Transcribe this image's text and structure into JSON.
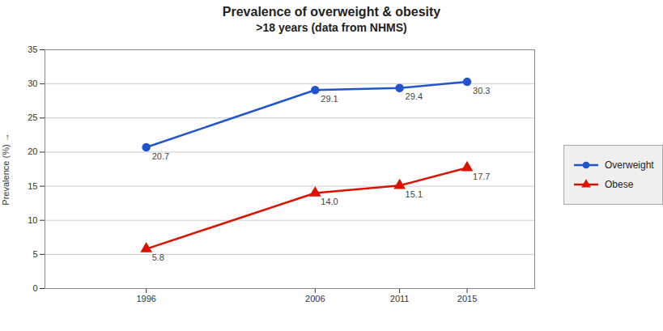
{
  "chart_data": {
    "type": "line",
    "title": "Prevalence of overweight & obesity",
    "subtitle": ">18 years (data from NHMS)",
    "x": [
      1996,
      2006,
      2011,
      2015
    ],
    "xlim": [
      1990,
      2019
    ],
    "xticks": [
      1996,
      2006,
      2011,
      2015
    ],
    "ylabel": "Prevalence (%)",
    "ylim": [
      0,
      35
    ],
    "yticks": [
      0,
      5,
      10,
      15,
      20,
      25,
      30,
      35
    ],
    "grid": true,
    "legend": "right",
    "data_labels": true,
    "series": [
      {
        "name": "Overweight",
        "color": "#2255cc",
        "marker": "circle",
        "values": [
          20.7,
          29.1,
          29.4,
          30.3
        ],
        "value_labels": [
          "20.7",
          "29.1",
          "29.4",
          "30.3"
        ]
      },
      {
        "name": "Obese",
        "color": "#dd1100",
        "marker": "triangle",
        "values": [
          5.8,
          14.0,
          15.1,
          17.7
        ],
        "value_labels": [
          "5.8",
          "14.0",
          "15.1",
          "17.7"
        ]
      }
    ]
  }
}
